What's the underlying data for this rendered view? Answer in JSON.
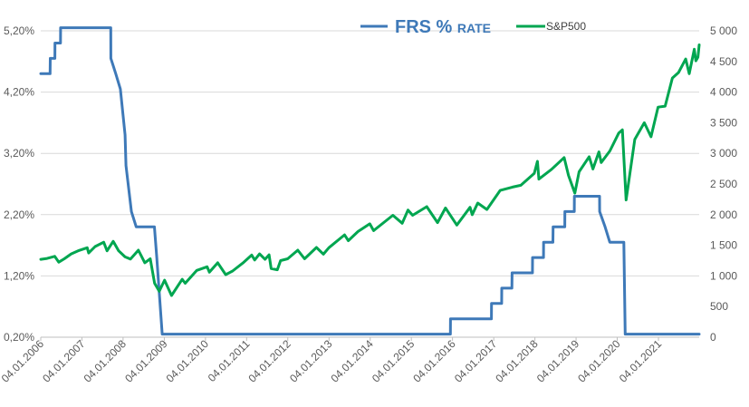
{
  "chart_data": {
    "type": "line",
    "legend_position": "top",
    "colors": {
      "frs": "#3e79b8",
      "sp": "#00a650",
      "grid": "#d9d9d9",
      "axis": "#bfbfbf"
    },
    "legend": [
      {
        "key": "frs",
        "text": "FRS % ",
        "text2": "RATE"
      },
      {
        "key": "sp",
        "text": "S&P500"
      }
    ],
    "y_left": {
      "min": 0.2,
      "max": 5.2,
      "ticks": [
        "0,20%",
        "1,20%",
        "2,20%",
        "3,20%",
        "4,20%",
        "5,20%"
      ],
      "values": [
        0.2,
        1.2,
        2.2,
        3.2,
        4.2,
        5.2
      ]
    },
    "y_right": {
      "min": 0,
      "max": 5000,
      "ticks": [
        "0",
        "500",
        "1 000",
        "1 500",
        "2 000",
        "2 500",
        "3 000",
        "3 500",
        "4 000",
        "4 500",
        "5 000"
      ],
      "values": [
        0,
        500,
        1000,
        1500,
        2000,
        2500,
        3000,
        3500,
        4000,
        4500,
        5000
      ]
    },
    "x_ticks": [
      "04.01.2006",
      "04.01.2007",
      "04.01.2008",
      "04.01.2009",
      "04.01.2010",
      "04.01.2011",
      "04.01.2012",
      "04.01.2013",
      "04.01.2014",
      "04.01.2015",
      "04.01.2016",
      "04.01.2017",
      "04.01.2018",
      "04.01.2019",
      "04.01.2020",
      "04.01.2021"
    ],
    "x_range": [
      "2006-01-04",
      "2021-12-31"
    ],
    "series": [
      {
        "name": "FRS % RATE",
        "key": "frs",
        "axis": "left",
        "points": [
          [
            "2006-01-04",
            4.5
          ],
          [
            "2006-03-28",
            4.5
          ],
          [
            "2006-03-29",
            4.75
          ],
          [
            "2006-05-09",
            4.75
          ],
          [
            "2006-05-10",
            5.0
          ],
          [
            "2006-06-28",
            5.0
          ],
          [
            "2006-06-29",
            5.25
          ],
          [
            "2007-09-17",
            5.25
          ],
          [
            "2007-09-18",
            4.75
          ],
          [
            "2007-10-31",
            4.5
          ],
          [
            "2007-12-11",
            4.25
          ],
          [
            "2008-01-22",
            3.5
          ],
          [
            "2008-01-30",
            3.0
          ],
          [
            "2008-03-18",
            2.25
          ],
          [
            "2008-04-30",
            2.0
          ],
          [
            "2008-10-08",
            2.0
          ],
          [
            "2008-10-29",
            1.5
          ],
          [
            "2008-12-16",
            0.25
          ],
          [
            "2015-12-16",
            0.25
          ],
          [
            "2015-12-17",
            0.5
          ],
          [
            "2016-12-14",
            0.5
          ],
          [
            "2016-12-15",
            0.75
          ],
          [
            "2017-03-15",
            0.75
          ],
          [
            "2017-03-16",
            1.0
          ],
          [
            "2017-06-14",
            1.0
          ],
          [
            "2017-06-15",
            1.25
          ],
          [
            "2017-12-13",
            1.25
          ],
          [
            "2017-12-14",
            1.5
          ],
          [
            "2018-03-21",
            1.5
          ],
          [
            "2018-03-22",
            1.75
          ],
          [
            "2018-06-13",
            1.75
          ],
          [
            "2018-06-14",
            2.0
          ],
          [
            "2018-09-26",
            2.0
          ],
          [
            "2018-09-27",
            2.25
          ],
          [
            "2018-12-19",
            2.25
          ],
          [
            "2018-12-20",
            2.5
          ],
          [
            "2019-07-31",
            2.5
          ],
          [
            "2019-08-01",
            2.25
          ],
          [
            "2019-09-18",
            2.0
          ],
          [
            "2019-10-30",
            1.75
          ],
          [
            "2020-03-03",
            1.75
          ],
          [
            "2020-03-15",
            0.25
          ],
          [
            "2021-12-31",
            0.25
          ]
        ]
      },
      {
        "name": "S&P500",
        "key": "sp",
        "axis": "right",
        "points": [
          [
            "2006-01-04",
            1270
          ],
          [
            "2006-03-01",
            1285
          ],
          [
            "2006-05-08",
            1320
          ],
          [
            "2006-06-13",
            1225
          ],
          [
            "2006-08-01",
            1280
          ],
          [
            "2006-10-01",
            1360
          ],
          [
            "2006-12-01",
            1410
          ],
          [
            "2007-02-20",
            1460
          ],
          [
            "2007-03-05",
            1375
          ],
          [
            "2007-05-01",
            1480
          ],
          [
            "2007-07-16",
            1550
          ],
          [
            "2007-08-15",
            1410
          ],
          [
            "2007-10-09",
            1565
          ],
          [
            "2007-11-26",
            1410
          ],
          [
            "2008-01-22",
            1310
          ],
          [
            "2008-03-10",
            1275
          ],
          [
            "2008-05-19",
            1420
          ],
          [
            "2008-07-15",
            1215
          ],
          [
            "2008-09-01",
            1280
          ],
          [
            "2008-10-10",
            880
          ],
          [
            "2008-11-20",
            750
          ],
          [
            "2009-01-06",
            930
          ],
          [
            "2009-03-09",
            680
          ],
          [
            "2009-06-12",
            945
          ],
          [
            "2009-07-08",
            880
          ],
          [
            "2009-10-19",
            1090
          ],
          [
            "2010-01-19",
            1150
          ],
          [
            "2010-02-08",
            1060
          ],
          [
            "2010-04-23",
            1215
          ],
          [
            "2010-07-02",
            1020
          ],
          [
            "2010-09-01",
            1080
          ],
          [
            "2010-12-01",
            1210
          ],
          [
            "2011-02-18",
            1340
          ],
          [
            "2011-03-16",
            1260
          ],
          [
            "2011-04-29",
            1360
          ],
          [
            "2011-06-16",
            1270
          ],
          [
            "2011-07-22",
            1345
          ],
          [
            "2011-08-10",
            1120
          ],
          [
            "2011-10-03",
            1100
          ],
          [
            "2011-11-01",
            1250
          ],
          [
            "2012-01-03",
            1280
          ],
          [
            "2012-04-02",
            1420
          ],
          [
            "2012-06-01",
            1280
          ],
          [
            "2012-09-14",
            1465
          ],
          [
            "2012-11-15",
            1355
          ],
          [
            "2013-01-02",
            1460
          ],
          [
            "2013-05-21",
            1670
          ],
          [
            "2013-06-24",
            1575
          ],
          [
            "2013-09-18",
            1725
          ],
          [
            "2013-12-31",
            1850
          ],
          [
            "2014-02-03",
            1740
          ],
          [
            "2014-07-24",
            1990
          ],
          [
            "2014-10-15",
            1860
          ],
          [
            "2014-12-05",
            2075
          ],
          [
            "2015-01-15",
            1990
          ],
          [
            "2015-05-21",
            2130
          ],
          [
            "2015-08-24",
            1870
          ],
          [
            "2015-11-03",
            2110
          ],
          [
            "2016-02-11",
            1830
          ],
          [
            "2016-06-08",
            2120
          ],
          [
            "2016-06-27",
            2000
          ],
          [
            "2016-08-15",
            2190
          ],
          [
            "2016-11-04",
            2085
          ],
          [
            "2017-03-01",
            2395
          ],
          [
            "2017-06-19",
            2450
          ],
          [
            "2017-09-01",
            2480
          ],
          [
            "2017-12-29",
            2675
          ],
          [
            "2018-01-26",
            2870
          ],
          [
            "2018-02-08",
            2580
          ],
          [
            "2018-06-01",
            2740
          ],
          [
            "2018-09-20",
            2930
          ],
          [
            "2018-10-29",
            2640
          ],
          [
            "2018-12-24",
            2350
          ],
          [
            "2019-01-31",
            2700
          ],
          [
            "2019-04-30",
            2945
          ],
          [
            "2019-06-03",
            2745
          ],
          [
            "2019-07-26",
            3025
          ],
          [
            "2019-08-15",
            2850
          ],
          [
            "2019-10-31",
            3040
          ],
          [
            "2020-01-17",
            3330
          ],
          [
            "2020-02-19",
            3385
          ],
          [
            "2020-03-23",
            2240
          ],
          [
            "2020-06-08",
            3230
          ],
          [
            "2020-08-31",
            3500
          ],
          [
            "2020-10-30",
            3270
          ],
          [
            "2020-12-31",
            3755
          ],
          [
            "2021-03-04",
            3770
          ],
          [
            "2021-05-07",
            4230
          ],
          [
            "2021-07-01",
            4320
          ],
          [
            "2021-09-02",
            4540
          ],
          [
            "2021-10-04",
            4300
          ],
          [
            "2021-11-18",
            4700
          ],
          [
            "2021-12-01",
            4510
          ],
          [
            "2021-12-20",
            4570
          ],
          [
            "2021-12-31",
            4770
          ]
        ]
      }
    ]
  }
}
